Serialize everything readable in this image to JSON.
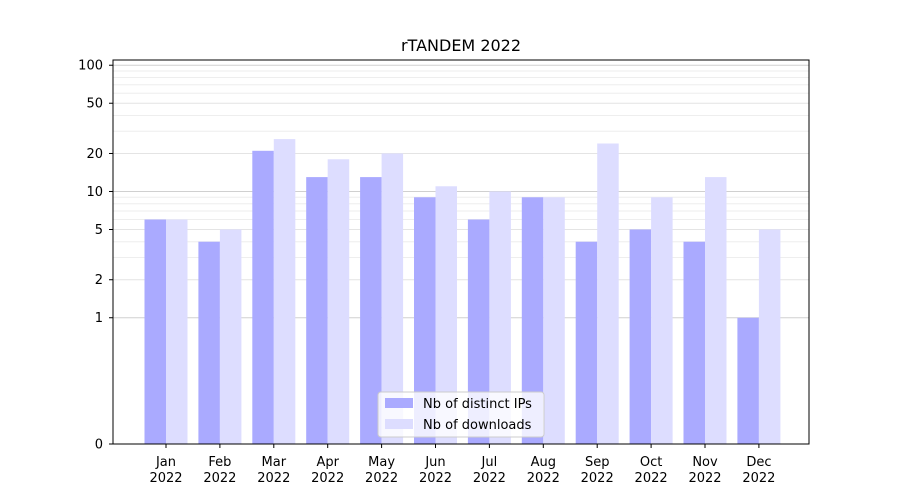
{
  "chart_data": {
    "type": "bar",
    "title": "rTANDEM 2022",
    "categories": [
      [
        "Jan",
        "2022"
      ],
      [
        "Feb",
        "2022"
      ],
      [
        "Mar",
        "2022"
      ],
      [
        "Apr",
        "2022"
      ],
      [
        "May",
        "2022"
      ],
      [
        "Jun",
        "2022"
      ],
      [
        "Jul",
        "2022"
      ],
      [
        "Aug",
        "2022"
      ],
      [
        "Sep",
        "2022"
      ],
      [
        "Oct",
        "2022"
      ],
      [
        "Nov",
        "2022"
      ],
      [
        "Dec",
        "2022"
      ]
    ],
    "series": [
      {
        "name": "Nb of distinct IPs",
        "color": "#aaaaff",
        "values": [
          6,
          4,
          21,
          13,
          13,
          9,
          6,
          9,
          4,
          5,
          4,
          1
        ]
      },
      {
        "name": "Nb of downloads",
        "color": "#ddddff",
        "values": [
          6,
          5,
          26,
          18,
          20,
          11,
          10,
          9,
          24,
          9,
          13,
          5
        ]
      }
    ],
    "y_scale": "symlog",
    "ylim": [
      0,
      110
    ],
    "yticks": [
      0,
      1,
      2,
      5,
      10,
      20,
      50,
      100
    ],
    "xlabel": "",
    "ylabel": "",
    "grid": true,
    "legend_position": "lower-center"
  }
}
